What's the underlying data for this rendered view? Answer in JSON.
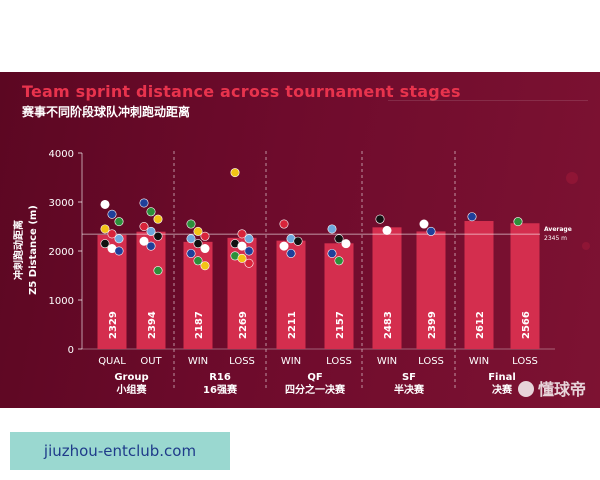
{
  "title": "Team sprint distance across tournament stages",
  "subtitle": "赛事不同阶段球队冲刺跑动距离",
  "watermark": "懂球帝",
  "url_text": "jiuzhou-entclub.com",
  "colors": {
    "panel_bg": "#6e0b2c",
    "bar": "#d42e4e",
    "title": "#e8334d",
    "text": "#ffffff"
  },
  "chart_data": {
    "type": "bar",
    "ylabel_cn": "冲刺跑动距离",
    "ylabel": "Z5 Distance (m)",
    "ylim": [
      0,
      4000
    ],
    "yticks": [
      0,
      1000,
      2000,
      3000,
      4000
    ],
    "grid": false,
    "average": {
      "label": "Average",
      "value_text": "2345 m",
      "value": 2345
    },
    "categories": [
      "QUAL",
      "OUT",
      "WIN",
      "LOSS",
      "WIN",
      "LOSS",
      "WIN",
      "LOSS",
      "WIN",
      "LOSS"
    ],
    "values": [
      2329,
      2394,
      2187,
      2269,
      2211,
      2157,
      2483,
      2399,
      2612,
      2566
    ],
    "groups": [
      {
        "name": "Group",
        "name_cn": "小组赛",
        "span": [
          0,
          1
        ]
      },
      {
        "name": "R16",
        "name_cn": "16强赛",
        "span": [
          2,
          3
        ]
      },
      {
        "name": "QF",
        "name_cn": "四分之一决赛",
        "span": [
          4,
          5
        ]
      },
      {
        "name": "SF",
        "name_cn": "半决赛",
        "span": [
          6,
          7
        ]
      },
      {
        "name": "Final",
        "name_cn": "决赛",
        "span": [
          8,
          9
        ]
      }
    ]
  }
}
